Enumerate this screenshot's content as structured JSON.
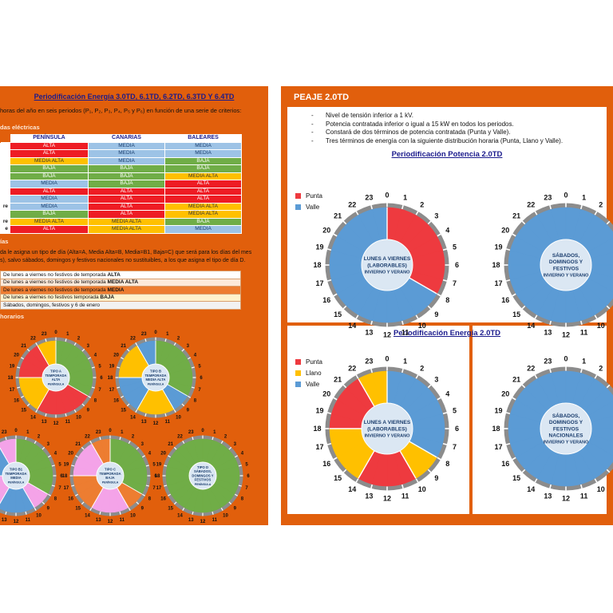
{
  "left": {
    "title": "Periodificación Energía 3.0TD, 6.1TD, 6.2TD, 6.3TD Y 6.4TD",
    "intro": "horas del año en seis periodos (P₁, P₂, P₃, P₄, P₅ y P₆) en función de una serie de criterios:",
    "seasons_heading": "das eléctricas",
    "table": {
      "headers": [
        "PENÍNSULA",
        "CANARIAS",
        "BALEARES"
      ],
      "row_labels": [
        "",
        "",
        "",
        "",
        "",
        "",
        "",
        "",
        "re",
        "",
        "re",
        "e"
      ],
      "rows": [
        [
          "ALTA",
          "MEDIA",
          "MEDIA"
        ],
        [
          "ALTA",
          "MEDIA",
          "MEDIA"
        ],
        [
          "MEDIA ALTA",
          "MEDIA",
          "BAJA"
        ],
        [
          "BAJA",
          "BAJA",
          "BAJA"
        ],
        [
          "BAJA",
          "BAJA",
          "MEDIA ALTA"
        ],
        [
          "MEDIA",
          "BAJA",
          "ALTA"
        ],
        [
          "ALTA",
          "ALTA",
          "ALTA"
        ],
        [
          "MEDIA",
          "ALTA",
          "ALTA"
        ],
        [
          "MEDIA",
          "ALTA",
          "MEDIA ALTA"
        ],
        [
          "BAJA",
          "ALTA",
          "MEDIA ALTA"
        ],
        [
          "MEDIA ALTA",
          "MEDIA ALTA",
          "BAJA"
        ],
        [
          "ALTA",
          "MEDIA ALTA",
          "MEDIA"
        ]
      ]
    },
    "days_heading": "ías",
    "days_para": [
      "da le asigna un tipo de día (Alta=A, Media Alta=B, Media=B1, Baja=C) que será para los días del mes",
      "s), salvo sábados, domingos y festivos nacionales no sustituibles, a los que asigna el tipo de día D."
    ],
    "days": [
      {
        "text": "De lunes a viernes no festivos de temporada ",
        "bold": "ALTA"
      },
      {
        "text": "De lunes a viernes no festivos de temporada ",
        "bold": "MEDIA ALTA"
      },
      {
        "text": "De lunes a viernes no festivos de temporada ",
        "bold": "MEDIA"
      },
      {
        "text": "De lunes a viernes no festivos temporada ",
        "bold": "BAJA"
      },
      {
        "text": "Sábados, domingos, festivos y 6 de enero",
        "bold": ""
      }
    ],
    "hours_heading": "horarios"
  },
  "right": {
    "title": "PEAJE 2.0TD",
    "bullets": [
      "Nivel de tensión inferior a 1 kV.",
      "Potencia contratada inferior o igual a 15 kW en todos los periodos.",
      "Constará de dos términos de potencia contratada (Punta y Valle).",
      "Tres términos de energía con la siguiente distribución horaria (Punta, Llano y Valle)."
    ],
    "potencia_title": "Periodificación Potencia 2.0TD",
    "energia_title": "Periodificación Energía 2.0TD",
    "legend_potencia": [
      {
        "label": "Punta",
        "color": "#ee3a3f"
      },
      {
        "label": "Valle",
        "color": "#5b9bd5"
      }
    ],
    "legend_energia": [
      {
        "label": "Punta",
        "color": "#ee3a3f"
      },
      {
        "label": "Llano",
        "color": "#ffc000"
      },
      {
        "label": "Valle",
        "color": "#5b9bd5"
      }
    ]
  },
  "colors": {
    "orange": "#e15f0c",
    "punta": "#ee3a3f",
    "llano": "#ffc000",
    "valle": "#5b9bd5",
    "alta_red": "#ee3a3f",
    "green": "#70ad47",
    "pink": "#f4a3e8",
    "orange_seg": "#ed7d31"
  },
  "chart_data": [
    {
      "type": "pie",
      "id": "potencia_laborables",
      "title": "",
      "center_label": [
        "LUNES A VIERNES",
        "(LABORABLES)",
        "INVIERNO Y VERANO"
      ],
      "hours": [
        "P",
        "P",
        "P",
        "P",
        "P",
        "P",
        "P",
        "P",
        "V",
        "V",
        "V",
        "V",
        "V",
        "V",
        "V",
        "V",
        "V",
        "V",
        "V",
        "V",
        "V",
        "V",
        "V",
        "V"
      ],
      "hour_order": "clockwise from 0 at top; index = start hour",
      "legend": [
        "Punta",
        "Valle"
      ],
      "tick_labels": [
        "0",
        "1",
        "2",
        "3",
        "4",
        "5",
        "6",
        "7",
        "8",
        "9",
        "10",
        "11",
        "12",
        "13",
        "14",
        "15",
        "16",
        "17",
        "18",
        "19",
        "20",
        "21",
        "22",
        "23"
      ]
    },
    {
      "type": "pie",
      "id": "potencia_festivos",
      "center_label": [
        "SÁBADOS,",
        "DOMINGOS Y",
        "FESTIVOS",
        "INVIERNO Y VERANO"
      ],
      "hours": [
        "V",
        "V",
        "V",
        "V",
        "V",
        "V",
        "V",
        "V",
        "V",
        "V",
        "V",
        "V",
        "V",
        "V",
        "V",
        "V",
        "V",
        "V",
        "V",
        "V",
        "V",
        "V",
        "V",
        "V"
      ],
      "tick_labels": [
        "0",
        "1",
        "2",
        "3",
        "4",
        "5",
        "6",
        "7",
        "8",
        "9",
        "10",
        "11",
        "12",
        "13",
        "14",
        "15",
        "16",
        "17",
        "18",
        "19",
        "20",
        "21",
        "22",
        "23"
      ]
    },
    {
      "type": "pie",
      "id": "energia_laborables",
      "center_label": [
        "LUNES A VIERNES",
        "(LABORABLES)",
        "INVIERNO Y VERANO"
      ],
      "hours": [
        "V",
        "V",
        "V",
        "V",
        "V",
        "V",
        "V",
        "V",
        "L",
        "L",
        "P",
        "P",
        "P",
        "P",
        "L",
        "L",
        "L",
        "L",
        "P",
        "P",
        "P",
        "P",
        "L",
        "L"
      ],
      "legend": [
        "Punta",
        "Llano",
        "Valle"
      ],
      "tick_labels": [
        "0",
        "1",
        "2",
        "3",
        "4",
        "5",
        "6",
        "7",
        "8",
        "9",
        "10",
        "11",
        "12",
        "13",
        "14",
        "15",
        "16",
        "17",
        "18",
        "19",
        "20",
        "21",
        "22",
        "23"
      ]
    },
    {
      "type": "pie",
      "id": "energia_festivos",
      "center_label": [
        "SÁBADOS,",
        "DOMINGOS Y",
        "FESTIVOS",
        "NACIONALES",
        "INVIERNO Y VERANO"
      ],
      "hours": [
        "V",
        "V",
        "V",
        "V",
        "V",
        "V",
        "V",
        "V",
        "V",
        "V",
        "V",
        "V",
        "V",
        "V",
        "V",
        "V",
        "V",
        "V",
        "V",
        "V",
        "V",
        "V",
        "V",
        "V"
      ],
      "tick_labels": [
        "0",
        "1",
        "2",
        "3",
        "4",
        "5",
        "6",
        "7",
        "8",
        "9",
        "10",
        "11",
        "12",
        "13",
        "14",
        "15",
        "16",
        "17",
        "18",
        "19",
        "20",
        "21",
        "22",
        "23"
      ]
    },
    {
      "type": "pie",
      "id": "tipo_a",
      "center_label": [
        "TIPO A",
        "TEMPORADA",
        "ALTA",
        "PENÍNSULA"
      ],
      "hours": [
        "G",
        "G",
        "G",
        "G",
        "G",
        "G",
        "G",
        "G",
        "R",
        "R",
        "R",
        "R",
        "R",
        "R",
        "Y",
        "Y",
        "Y",
        "Y",
        "R",
        "R",
        "R",
        "R",
        "Y",
        "Y"
      ]
    },
    {
      "type": "pie",
      "id": "tipo_b",
      "center_label": [
        "TIPO B",
        "TEMPORADA",
        "MEDIA ALTA",
        "PENÍNSULA"
      ],
      "hours": [
        "G",
        "G",
        "G",
        "G",
        "G",
        "G",
        "G",
        "G",
        "B",
        "B",
        "Y",
        "Y",
        "Y",
        "Y",
        "B",
        "B",
        "B",
        "B",
        "Y",
        "Y",
        "Y",
        "Y",
        "B",
        "B"
      ]
    },
    {
      "type": "pie",
      "id": "tipo_b1",
      "center_label": [
        "TIPO B1",
        "TEMPORADA",
        "MEDIA",
        "PENÍNSULA"
      ],
      "hours": [
        "G",
        "G",
        "G",
        "G",
        "G",
        "G",
        "G",
        "G",
        "K",
        "K",
        "B",
        "B",
        "B",
        "B",
        "K",
        "K",
        "K",
        "K",
        "B",
        "B",
        "B",
        "B",
        "K",
        "K"
      ]
    },
    {
      "type": "pie",
      "id": "tipo_c",
      "center_label": [
        "TIPO C",
        "TEMPORADA",
        "BAJA",
        "PENÍNSULA"
      ],
      "hours": [
        "G",
        "G",
        "G",
        "G",
        "G",
        "G",
        "G",
        "G",
        "O",
        "O",
        "K",
        "K",
        "K",
        "K",
        "O",
        "O",
        "O",
        "O",
        "K",
        "K",
        "K",
        "K",
        "O",
        "O"
      ]
    },
    {
      "type": "pie",
      "id": "tipo_d",
      "center_label": [
        "TIPO D",
        "SÁBADOS,",
        "DOMINGOS Y",
        "FESTIVOS",
        "PENÍNSULA"
      ],
      "hours": [
        "G",
        "G",
        "G",
        "G",
        "G",
        "G",
        "G",
        "G",
        "G",
        "G",
        "G",
        "G",
        "G",
        "G",
        "G",
        "G",
        "G",
        "G",
        "G",
        "G",
        "G",
        "G",
        "G",
        "G"
      ]
    }
  ]
}
